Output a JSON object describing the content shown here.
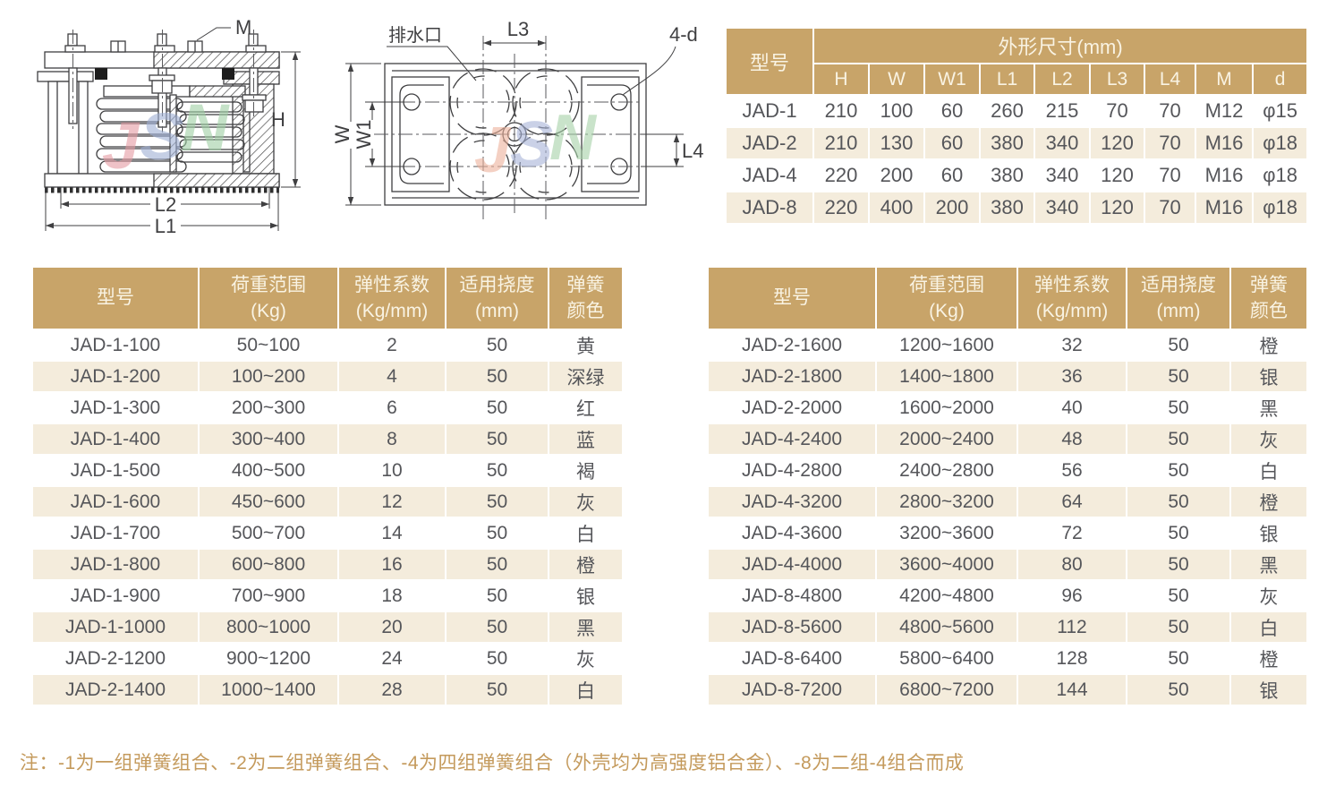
{
  "colors": {
    "table_header_bg": "#c8a469",
    "row_alt_bg": "#f4ecdc",
    "row_bg": "#ffffff",
    "cell_text": "#55565a",
    "header_text": "#f9f3e3",
    "note_text": "#c49a5c",
    "drawing_line": "#3f3f41",
    "watermark_j": "#e59ba2",
    "watermark_s": "#9fb0d4",
    "watermark_n": "#9fd0a4"
  },
  "drawings": {
    "side_view": {
      "labels": {
        "m": "M",
        "h": "H",
        "l2": "L2",
        "l1": "L1"
      },
      "watermark": {
        "j": "J",
        "s": "S",
        "n": "N"
      }
    },
    "top_view": {
      "labels": {
        "drain": "排水口",
        "l3": "L3",
        "four_d": "4-d",
        "w": "W",
        "w1": "W1",
        "l4": "L4"
      },
      "watermark": {
        "j": "J",
        "s": "S",
        "n": "N"
      }
    }
  },
  "dim_table": {
    "corner_header": "型号",
    "group_header": "外形尺寸(mm)",
    "columns": [
      "H",
      "W",
      "W1",
      "L1",
      "L2",
      "L3",
      "L4",
      "M",
      "d"
    ],
    "rows": [
      [
        "JAD-1",
        "210",
        "100",
        "60",
        "260",
        "215",
        "70",
        "70",
        "M12",
        "φ15"
      ],
      [
        "JAD-2",
        "210",
        "130",
        "60",
        "380",
        "340",
        "120",
        "70",
        "M16",
        "φ18"
      ],
      [
        "JAD-4",
        "220",
        "200",
        "60",
        "380",
        "340",
        "120",
        "70",
        "M16",
        "φ18"
      ],
      [
        "JAD-8",
        "220",
        "400",
        "200",
        "380",
        "340",
        "120",
        "70",
        "M16",
        "φ18"
      ]
    ]
  },
  "spec_headers": {
    "model": "型号",
    "cols": [
      [
        "荷重范围",
        "(Kg)"
      ],
      [
        "弹性系数",
        "(Kg/mm)"
      ],
      [
        "适用挠度",
        "(mm)"
      ],
      [
        "弹簧",
        "颜色"
      ]
    ]
  },
  "spec_left": {
    "rows": [
      [
        "JAD-1-100",
        "50~100",
        "2",
        "50",
        "黄"
      ],
      [
        "JAD-1-200",
        "100~200",
        "4",
        "50",
        "深绿"
      ],
      [
        "JAD-1-300",
        "200~300",
        "6",
        "50",
        "红"
      ],
      [
        "JAD-1-400",
        "300~400",
        "8",
        "50",
        "蓝"
      ],
      [
        "JAD-1-500",
        "400~500",
        "10",
        "50",
        "褐"
      ],
      [
        "JAD-1-600",
        "450~600",
        "12",
        "50",
        "灰"
      ],
      [
        "JAD-1-700",
        "500~700",
        "14",
        "50",
        "白"
      ],
      [
        "JAD-1-800",
        "600~800",
        "16",
        "50",
        "橙"
      ],
      [
        "JAD-1-900",
        "700~900",
        "18",
        "50",
        "银"
      ],
      [
        "JAD-1-1000",
        "800~1000",
        "20",
        "50",
        "黑"
      ],
      [
        "JAD-2-1200",
        "900~1200",
        "24",
        "50",
        "灰"
      ],
      [
        "JAD-2-1400",
        "1000~1400",
        "28",
        "50",
        "白"
      ]
    ]
  },
  "spec_right": {
    "rows": [
      [
        "JAD-2-1600",
        "1200~1600",
        "32",
        "50",
        "橙"
      ],
      [
        "JAD-2-1800",
        "1400~1800",
        "36",
        "50",
        "银"
      ],
      [
        "JAD-2-2000",
        "1600~2000",
        "40",
        "50",
        "黑"
      ],
      [
        "JAD-4-2400",
        "2000~2400",
        "48",
        "50",
        "灰"
      ],
      [
        "JAD-4-2800",
        "2400~2800",
        "56",
        "50",
        "白"
      ],
      [
        "JAD-4-3200",
        "2800~3200",
        "64",
        "50",
        "橙"
      ],
      [
        "JAD-4-3600",
        "3200~3600",
        "72",
        "50",
        "银"
      ],
      [
        "JAD-4-4000",
        "3600~4000",
        "80",
        "50",
        "黑"
      ],
      [
        "JAD-8-4800",
        "4200~4800",
        "96",
        "50",
        "灰"
      ],
      [
        "JAD-8-5600",
        "4800~5600",
        "112",
        "50",
        "白"
      ],
      [
        "JAD-8-6400",
        "5800~6400",
        "128",
        "50",
        "橙"
      ],
      [
        "JAD-8-7200",
        "6800~7200",
        "144",
        "50",
        "银"
      ]
    ]
  },
  "note": {
    "text": "注：-1为一组弹簧组合、-2为二组弹簧组合、-4为四组弹簧组合（外壳均为高强度铝合金）、-8为二组-4组合而成"
  }
}
